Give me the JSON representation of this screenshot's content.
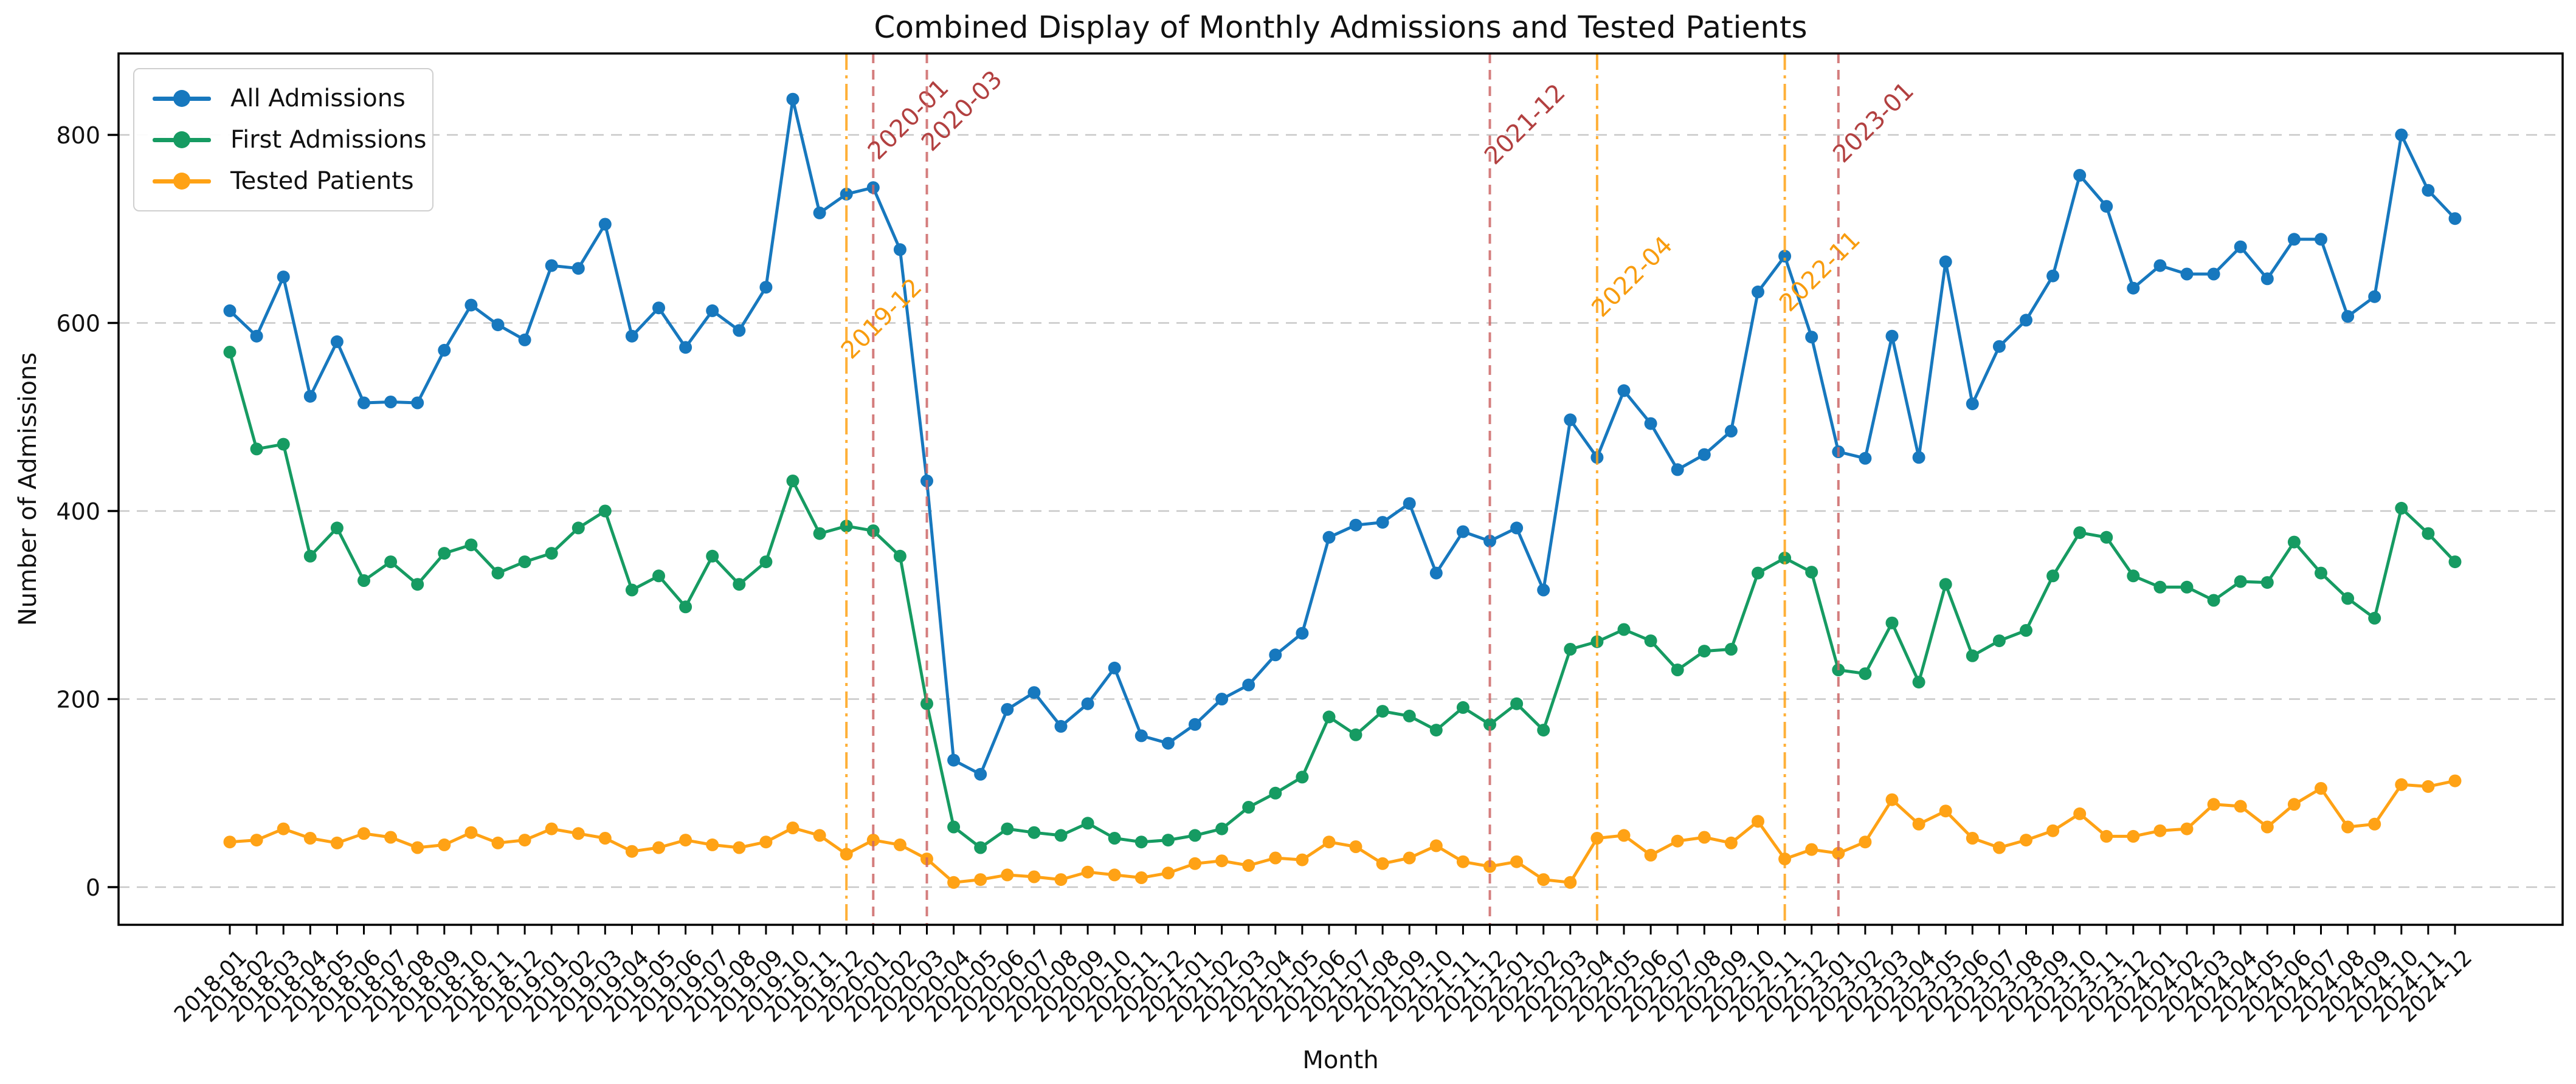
{
  "figure": {
    "title": "Combined Display of Monthly Admissions and Tested Patients"
  },
  "chart_data": {
    "type": "line",
    "title": "Combined Display of Monthly Admissions and Tested Patients",
    "xlabel": "Month",
    "ylabel": "Number of Admissions",
    "yticks": [
      0,
      200,
      400,
      600,
      800
    ],
    "ylim": [
      -40,
      886
    ],
    "grid": {
      "axis": "y",
      "style": "dashed",
      "color": "#c8c8c8"
    },
    "legend_position": "upper left",
    "categories": [
      "2018-01",
      "2018-02",
      "2018-03",
      "2018-04",
      "2018-05",
      "2018-06",
      "2018-07",
      "2018-08",
      "2018-09",
      "2018-10",
      "2018-11",
      "2018-12",
      "2019-01",
      "2019-02",
      "2019-03",
      "2019-04",
      "2019-05",
      "2019-06",
      "2019-07",
      "2019-08",
      "2019-09",
      "2019-10",
      "2019-11",
      "2019-12",
      "2020-01",
      "2020-02",
      "2020-03",
      "2020-04",
      "2020-05",
      "2020-06",
      "2020-07",
      "2020-08",
      "2020-09",
      "2020-10",
      "2020-11",
      "2020-12",
      "2021-01",
      "2021-02",
      "2021-03",
      "2021-04",
      "2021-05",
      "2021-06",
      "2021-07",
      "2021-08",
      "2021-09",
      "2021-10",
      "2021-11",
      "2021-12",
      "2022-01",
      "2022-02",
      "2022-03",
      "2022-04",
      "2022-05",
      "2022-06",
      "2022-07",
      "2022-08",
      "2022-09",
      "2022-10",
      "2022-11",
      "2022-12",
      "2023-01",
      "2023-02",
      "2023-03",
      "2023-04",
      "2023-05",
      "2023-06",
      "2023-07",
      "2023-08",
      "2023-09",
      "2023-10",
      "2023-11",
      "2023-12",
      "2024-01",
      "2024-02",
      "2024-03",
      "2024-04",
      "2024-05",
      "2024-06",
      "2024-07",
      "2024-08",
      "2024-09",
      "2024-10",
      "2024-11",
      "2024-12"
    ],
    "series": [
      {
        "name": "All Admissions",
        "color": "#1778be",
        "values": [
          613,
          586,
          649,
          522,
          580,
          515,
          516,
          515,
          571,
          619,
          598,
          582,
          661,
          658,
          705,
          586,
          616,
          574,
          613,
          592,
          638,
          838,
          717,
          737,
          744,
          678,
          432,
          135,
          120,
          189,
          207,
          171,
          195,
          233,
          161,
          153,
          173,
          200,
          215,
          247,
          270,
          372,
          385,
          388,
          408,
          334,
          378,
          368,
          382,
          316,
          497,
          457,
          528,
          493,
          444,
          460,
          485,
          633,
          671,
          585,
          463,
          456,
          586,
          457,
          665,
          514,
          575,
          603,
          650,
          757,
          724,
          637,
          661,
          652,
          652,
          681,
          647,
          689,
          689,
          607,
          628,
          800,
          741,
          711
        ]
      },
      {
        "name": "First Admissions",
        "color": "#169b62",
        "values": [
          569,
          466,
          471,
          352,
          382,
          326,
          346,
          322,
          355,
          364,
          334,
          346,
          355,
          382,
          400,
          316,
          331,
          298,
          352,
          322,
          346,
          432,
          376,
          384,
          379,
          352,
          195,
          64,
          42,
          62,
          58,
          55,
          68,
          52,
          48,
          50,
          55,
          62,
          85,
          100,
          117,
          181,
          162,
          187,
          182,
          167,
          191,
          173,
          195,
          167,
          253,
          261,
          274,
          262,
          231,
          251,
          253,
          334,
          350,
          335,
          231,
          227,
          281,
          218,
          322,
          246,
          262,
          273,
          331,
          377,
          372,
          331,
          319,
          319,
          305,
          325,
          324,
          367,
          334,
          307,
          286,
          403,
          376,
          346
        ]
      },
      {
        "name": "Tested Patients",
        "color": "#ffa215",
        "values": [
          48,
          50,
          62,
          52,
          47,
          57,
          53,
          42,
          45,
          58,
          47,
          50,
          62,
          57,
          52,
          38,
          42,
          50,
          45,
          42,
          48,
          63,
          55,
          35,
          50,
          45,
          30,
          5,
          8,
          13,
          11,
          8,
          16,
          13,
          10,
          15,
          25,
          28,
          23,
          31,
          29,
          48,
          43,
          25,
          31,
          44,
          27,
          22,
          27,
          8,
          5,
          52,
          55,
          34,
          49,
          53,
          47,
          70,
          30,
          40,
          36,
          48,
          93,
          67,
          81,
          52,
          42,
          50,
          60,
          78,
          54,
          54,
          60,
          62,
          88,
          86,
          64,
          88,
          105,
          64,
          67,
          109,
          107,
          113
        ]
      }
    ],
    "annotations": [
      {
        "label": "2019-12",
        "x": "2019-12",
        "line_style": "dashdot",
        "color": "#f89c0e",
        "line_color": "#ffa215",
        "label_y": 593
      },
      {
        "label": "2020-01",
        "x": "2020-01",
        "line_style": "dashed",
        "color": "#b24040",
        "line_color": "#cd6666",
        "label_y": 265
      },
      {
        "label": "2020-03",
        "x": "2020-03",
        "line_style": "dashed",
        "color": "#b24040",
        "line_color": "#cd6666",
        "label_y": 251
      },
      {
        "label": "2021-12",
        "x": "2021-12",
        "line_style": "dashed",
        "color": "#b24040",
        "line_color": "#cd6666",
        "label_y": 273
      },
      {
        "label": "2022-04",
        "x": "2022-04",
        "line_style": "dashdot",
        "color": "#f89c0e",
        "line_color": "#ffa215",
        "label_y": 524
      },
      {
        "label": "2022-11",
        "x": "2022-11",
        "line_style": "dashdot",
        "color": "#f89c0e",
        "line_color": "#ffa215",
        "label_y": 515
      },
      {
        "label": "2023-01",
        "x": "2023-01",
        "line_style": "dashed",
        "color": "#b24040",
        "line_color": "#cd6666",
        "label_y": 270
      }
    ]
  }
}
